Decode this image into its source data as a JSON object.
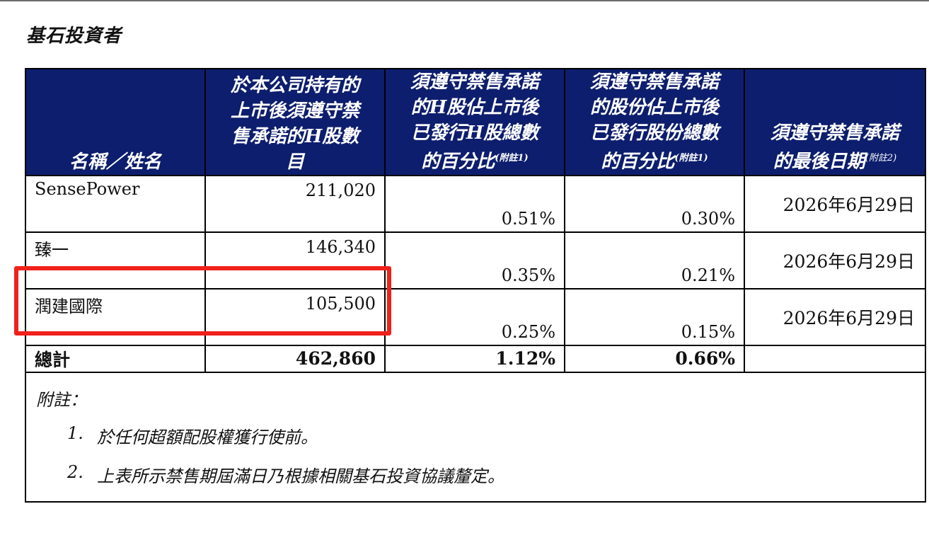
{
  "section_title": "基石投資者",
  "table": {
    "headers": [
      {
        "lines": [
          "名稱／姓名"
        ],
        "note": ""
      },
      {
        "lines": [
          "於本公司持有的",
          "上市後須遵守禁",
          "售承諾的H股數",
          "目"
        ],
        "note": ""
      },
      {
        "lines": [
          "須遵守禁售承諾",
          "的H股佔上市後",
          "已發行H股總數",
          "的百分比"
        ],
        "note": "(附註1)"
      },
      {
        "lines": [
          "須遵守禁售承諾",
          "的股份佔上市後",
          "已發行股份總數",
          "的百分比"
        ],
        "note": "(附註1)"
      },
      {
        "lines": [
          "須遵守禁售承諾",
          "的最後日期"
        ],
        "note": "(附註2)"
      }
    ],
    "rows": [
      {
        "name": "SensePower",
        "shares": "211,020",
        "h_pct": "0.51%",
        "total_pct": "0.30%",
        "date": "2026年6月29日"
      },
      {
        "name": "臻一",
        "shares": "146,340",
        "h_pct": "0.35%",
        "total_pct": "0.21%",
        "date": "2026年6月29日"
      },
      {
        "name": "潤建國際",
        "shares": "105,500",
        "h_pct": "0.25%",
        "total_pct": "0.15%",
        "date": "2026年6月29日"
      }
    ],
    "total": {
      "label": "總計",
      "shares": "462,860",
      "h_pct": "1.12%",
      "total_pct": "0.66%"
    }
  },
  "notes": {
    "title": "附註：",
    "items": [
      {
        "num": "1.",
        "text": "於任何超額配股權獲行使前。"
      },
      {
        "num": "2.",
        "text": "上表所示禁售期屆滿日乃根據相關基石投資協議釐定。"
      }
    ]
  },
  "colors": {
    "header_bg": "#0d1e6e",
    "highlight": "#f0211b"
  }
}
